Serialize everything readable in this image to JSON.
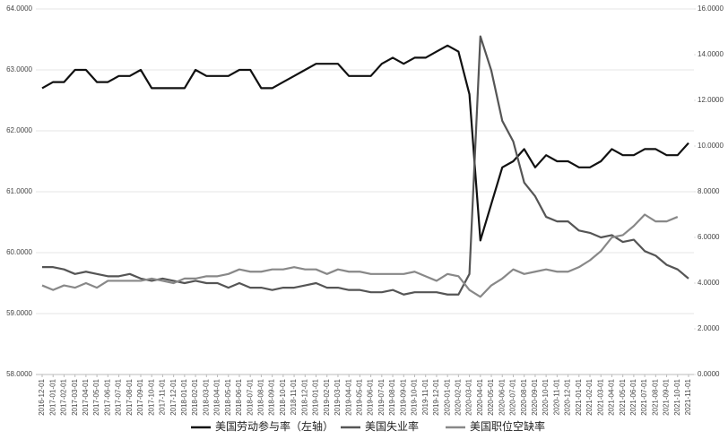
{
  "chart_data": {
    "type": "line",
    "x": [
      "2016-12-01",
      "2017-01-01",
      "2017-02-01",
      "2017-03-01",
      "2017-04-01",
      "2017-05-01",
      "2017-06-01",
      "2017-07-01",
      "2017-08-01",
      "2017-09-01",
      "2017-10-01",
      "2017-11-01",
      "2017-12-01",
      "2018-01-01",
      "2018-02-01",
      "2018-03-01",
      "2018-04-01",
      "2018-05-01",
      "2018-06-01",
      "2018-07-01",
      "2018-08-01",
      "2018-09-01",
      "2018-10-01",
      "2018-11-01",
      "2018-12-01",
      "2019-01-01",
      "2019-02-01",
      "2019-03-01",
      "2019-04-01",
      "2019-05-01",
      "2019-06-01",
      "2019-07-01",
      "2019-08-01",
      "2019-09-01",
      "2019-10-01",
      "2019-11-01",
      "2019-12-01",
      "2020-01-01",
      "2020-02-01",
      "2020-03-01",
      "2020-04-01",
      "2020-05-01",
      "2020-06-01",
      "2020-07-01",
      "2020-08-01",
      "2020-09-01",
      "2020-10-01",
      "2020-11-01",
      "2020-12-01",
      "2021-01-01",
      "2021-02-01",
      "2021-03-01",
      "2021-04-01",
      "2021-05-01",
      "2021-06-01",
      "2021-07-01",
      "2021-08-01",
      "2021-09-01",
      "2021-10-01",
      "2021-11-01"
    ],
    "series": [
      {
        "name": "美国劳动参与率（左轴）",
        "color": "#111111",
        "axis": "y",
        "values": [
          62.7,
          62.8,
          62.8,
          63.0,
          63.0,
          62.8,
          62.8,
          62.9,
          62.9,
          63.0,
          62.7,
          62.7,
          62.7,
          62.7,
          63.0,
          62.9,
          62.9,
          62.9,
          63.0,
          63.0,
          62.7,
          62.7,
          62.8,
          62.9,
          63.0,
          63.1,
          63.1,
          63.1,
          62.9,
          62.9,
          62.9,
          63.1,
          63.2,
          63.1,
          63.2,
          63.2,
          63.3,
          63.4,
          63.3,
          62.6,
          60.2,
          60.8,
          61.4,
          61.5,
          61.7,
          61.4,
          61.6,
          61.5,
          61.5,
          61.4,
          61.4,
          61.5,
          61.7,
          61.6,
          61.6,
          61.7,
          61.7,
          61.6,
          61.6,
          61.8
        ]
      },
      {
        "name": "美国失业率",
        "color": "#555555",
        "axis": "y2",
        "values": [
          4.7,
          4.7,
          4.6,
          4.4,
          4.5,
          4.4,
          4.3,
          4.3,
          4.4,
          4.2,
          4.1,
          4.2,
          4.1,
          4.0,
          4.1,
          4.0,
          4.0,
          3.8,
          4.0,
          3.8,
          3.8,
          3.7,
          3.8,
          3.8,
          3.9,
          4.0,
          3.8,
          3.8,
          3.7,
          3.7,
          3.6,
          3.6,
          3.7,
          3.5,
          3.6,
          3.6,
          3.6,
          3.5,
          3.5,
          4.4,
          14.8,
          13.3,
          11.1,
          10.2,
          8.4,
          7.8,
          6.9,
          6.7,
          6.7,
          6.3,
          6.2,
          6.0,
          6.1,
          5.8,
          5.9,
          5.4,
          5.2,
          4.8,
          4.6,
          4.2
        ]
      },
      {
        "name": "美国职位空缺率",
        "color": "#888888",
        "axis": "y2",
        "values": [
          3.9,
          3.7,
          3.9,
          3.8,
          4.0,
          3.8,
          4.1,
          4.1,
          4.1,
          4.1,
          4.2,
          4.1,
          4.0,
          4.2,
          4.2,
          4.3,
          4.3,
          4.4,
          4.6,
          4.5,
          4.5,
          4.6,
          4.6,
          4.7,
          4.6,
          4.6,
          4.4,
          4.6,
          4.5,
          4.5,
          4.4,
          4.4,
          4.4,
          4.4,
          4.5,
          4.3,
          4.1,
          4.4,
          4.3,
          3.7,
          3.4,
          3.9,
          4.2,
          4.6,
          4.4,
          4.5,
          4.6,
          4.5,
          4.5,
          4.7,
          5.0,
          5.4,
          6.0,
          6.1,
          6.5,
          7.0,
          6.7,
          6.7,
          6.9,
          null
        ]
      }
    ],
    "ylim": [
      58,
      64
    ],
    "yticks": [
      {
        "value": 58,
        "label": "58.0000"
      },
      {
        "value": 59,
        "label": "59.0000"
      },
      {
        "value": 60,
        "label": "60.0000"
      },
      {
        "value": 61,
        "label": "61.0000"
      },
      {
        "value": 62,
        "label": "62.0000"
      },
      {
        "value": 63,
        "label": "63.0000"
      },
      {
        "value": 64,
        "label": "64.0000"
      }
    ],
    "y2lim": [
      0,
      16
    ],
    "y2ticks": [
      {
        "value": 0,
        "label": "0.0000"
      },
      {
        "value": 2,
        "label": "2.0000"
      },
      {
        "value": 4,
        "label": "4.0000"
      },
      {
        "value": 6,
        "label": "6.0000"
      },
      {
        "value": 8,
        "label": "8.0000"
      },
      {
        "value": 10,
        "label": "10.0000"
      },
      {
        "value": 12,
        "label": "12.0000"
      },
      {
        "value": 14,
        "label": "14.0000"
      },
      {
        "value": 16,
        "label": "16.0000"
      }
    ],
    "grid": true,
    "legend": "bottom"
  }
}
